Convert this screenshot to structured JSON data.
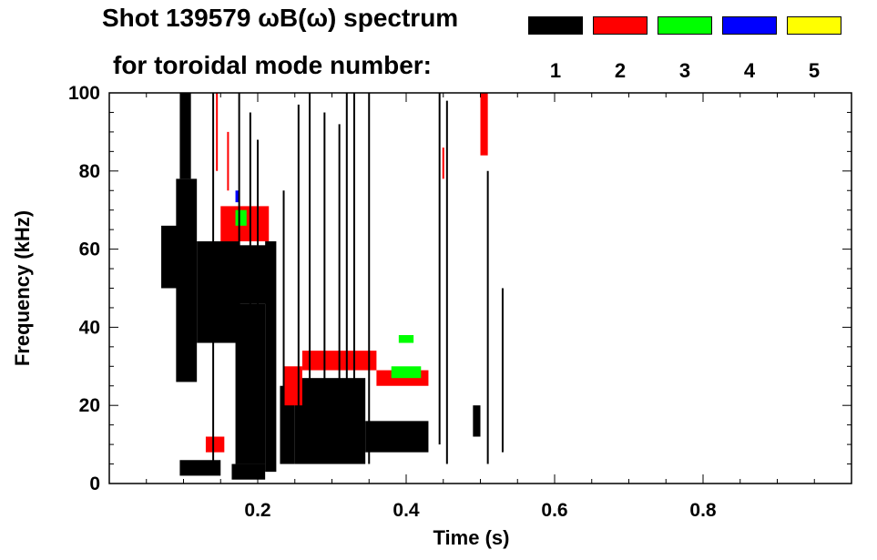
{
  "title": "Shot 139579 ωB(ω) spectrum",
  "subtitle": "for toroidal mode number:",
  "legend": [
    {
      "label": "1",
      "color": "#000000"
    },
    {
      "label": "2",
      "color": "#ff0000"
    },
    {
      "label": "3",
      "color": "#00ff00"
    },
    {
      "label": "4",
      "color": "#0000ff"
    },
    {
      "label": "5",
      "color": "#ffff00"
    }
  ],
  "chart_data": {
    "type": "heatmap",
    "title": "Shot 139579 ωB(ω) spectrum",
    "xlabel": "Time (s)",
    "ylabel": "Frequency (kHz)",
    "xlim": [
      0.0,
      1.0
    ],
    "ylim": [
      0,
      100
    ],
    "xticks": [
      0.2,
      0.4,
      0.6,
      0.8
    ],
    "yticks": [
      0,
      20,
      40,
      60,
      80,
      100
    ],
    "xtick_labels": [
      "0.2",
      "0.4",
      "0.6",
      "0.8"
    ],
    "ytick_labels": [
      "0",
      "20",
      "40",
      "60",
      "80",
      "100"
    ],
    "legend_title": "toroidal mode number",
    "regions": [
      {
        "mode": 1,
        "t0": 0.07,
        "t1": 0.095,
        "f0": 50,
        "f1": 66
      },
      {
        "mode": 1,
        "t0": 0.09,
        "t1": 0.118,
        "f0": 26,
        "f1": 78
      },
      {
        "mode": 1,
        "t0": 0.095,
        "t1": 0.11,
        "f0": 78,
        "f1": 100
      },
      {
        "mode": 1,
        "t0": 0.118,
        "t1": 0.175,
        "f0": 36,
        "f1": 62
      },
      {
        "mode": 1,
        "t0": 0.15,
        "t1": 0.22,
        "f0": 46,
        "f1": 61
      },
      {
        "mode": 1,
        "t0": 0.17,
        "t1": 0.21,
        "f0": 5,
        "f1": 46
      },
      {
        "mode": 1,
        "t0": 0.21,
        "t1": 0.225,
        "f0": 3,
        "f1": 62
      },
      {
        "mode": 1,
        "t0": 0.095,
        "t1": 0.15,
        "f0": 2,
        "f1": 6
      },
      {
        "mode": 1,
        "t0": 0.165,
        "t1": 0.21,
        "f0": 1,
        "f1": 5
      },
      {
        "mode": 1,
        "t0": 0.23,
        "t1": 0.25,
        "f0": 5,
        "f1": 25
      },
      {
        "mode": 1,
        "t0": 0.25,
        "t1": 0.345,
        "f0": 5,
        "f1": 27
      },
      {
        "mode": 1,
        "t0": 0.345,
        "t1": 0.43,
        "f0": 8,
        "f1": 16
      },
      {
        "mode": 1,
        "t0": 0.49,
        "t1": 0.5,
        "f0": 12,
        "f1": 20
      },
      {
        "mode": 2,
        "t0": 0.15,
        "t1": 0.215,
        "f0": 62,
        "f1": 71
      },
      {
        "mode": 2,
        "t0": 0.235,
        "t1": 0.26,
        "f0": 20,
        "f1": 30
      },
      {
        "mode": 2,
        "t0": 0.26,
        "t1": 0.36,
        "f0": 29,
        "f1": 34
      },
      {
        "mode": 2,
        "t0": 0.36,
        "t1": 0.43,
        "f0": 25,
        "f1": 29
      },
      {
        "mode": 2,
        "t0": 0.13,
        "t1": 0.155,
        "f0": 8,
        "f1": 12
      },
      {
        "mode": 2,
        "t0": 0.5,
        "t1": 0.51,
        "f0": 84,
        "f1": 100
      },
      {
        "mode": 3,
        "t0": 0.17,
        "t1": 0.185,
        "f0": 66,
        "f1": 70
      },
      {
        "mode": 3,
        "t0": 0.38,
        "t1": 0.42,
        "f0": 27,
        "f1": 30
      },
      {
        "mode": 3,
        "t0": 0.39,
        "t1": 0.41,
        "f0": 36,
        "f1": 38
      },
      {
        "mode": 4,
        "t0": 0.17,
        "t1": 0.175,
        "f0": 72,
        "f1": 75
      }
    ],
    "streaks": [
      {
        "mode": 1,
        "t": 0.14,
        "f0": 5,
        "f1": 100
      },
      {
        "mode": 1,
        "t": 0.175,
        "f0": 5,
        "f1": 100
      },
      {
        "mode": 1,
        "t": 0.19,
        "f0": 10,
        "f1": 95
      },
      {
        "mode": 1,
        "t": 0.2,
        "f0": 15,
        "f1": 88
      },
      {
        "mode": 1,
        "t": 0.235,
        "f0": 8,
        "f1": 75
      },
      {
        "mode": 1,
        "t": 0.255,
        "f0": 10,
        "f1": 97
      },
      {
        "mode": 1,
        "t": 0.27,
        "f0": 5,
        "f1": 100
      },
      {
        "mode": 1,
        "t": 0.29,
        "f0": 5,
        "f1": 95
      },
      {
        "mode": 1,
        "t": 0.31,
        "f0": 5,
        "f1": 92
      },
      {
        "mode": 1,
        "t": 0.32,
        "f0": 5,
        "f1": 100
      },
      {
        "mode": 1,
        "t": 0.33,
        "f0": 5,
        "f1": 100
      },
      {
        "mode": 1,
        "t": 0.35,
        "f0": 5,
        "f1": 100
      },
      {
        "mode": 1,
        "t": 0.445,
        "f0": 10,
        "f1": 100
      },
      {
        "mode": 1,
        "t": 0.455,
        "f0": 5,
        "f1": 98
      },
      {
        "mode": 1,
        "t": 0.51,
        "f0": 5,
        "f1": 80
      },
      {
        "mode": 1,
        "t": 0.53,
        "f0": 8,
        "f1": 50
      },
      {
        "mode": 2,
        "t": 0.145,
        "f0": 80,
        "f1": 100
      },
      {
        "mode": 2,
        "t": 0.16,
        "f0": 75,
        "f1": 90
      },
      {
        "mode": 2,
        "t": 0.45,
        "f0": 78,
        "f1": 86
      }
    ]
  }
}
